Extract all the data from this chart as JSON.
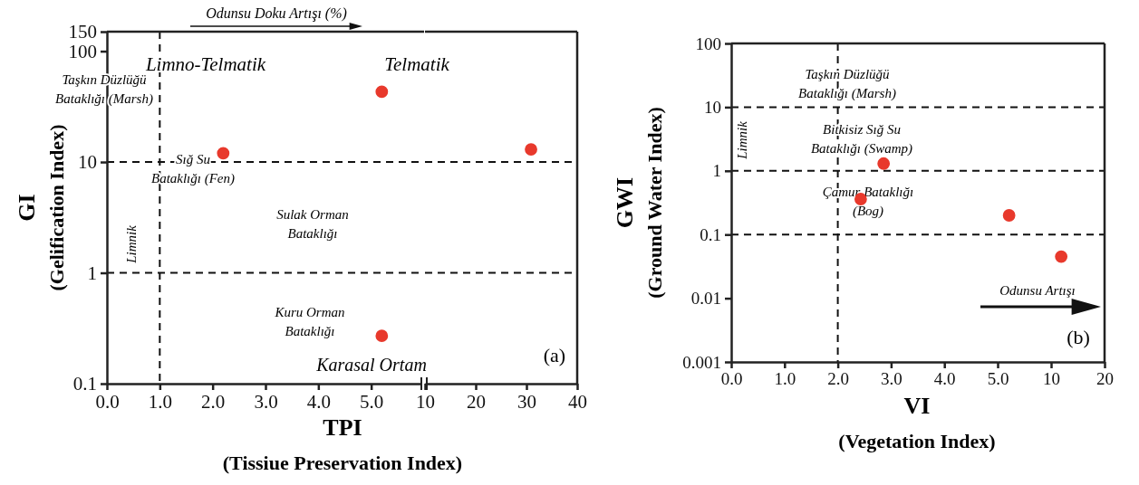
{
  "chart_data": [
    {
      "type": "scatter",
      "xlabel": "TPI\n(Tissiue Preservation Index)",
      "ylabel": "GI\n(Gelification Index)",
      "log": "y",
      "marker": "circle",
      "xlim": [
        0,
        6
      ],
      "xticks": [
        {
          "value": 0,
          "label": "0.0"
        },
        {
          "value": 1,
          "label": "1.0"
        },
        {
          "value": 2,
          "label": "2.0"
        },
        {
          "value": 3,
          "label": "3.0"
        },
        {
          "value": 4,
          "label": "4.0"
        },
        {
          "value": 5,
          "label": "5.0"
        }
      ],
      "ylim": [
        0.1,
        150
      ],
      "yticks": [
        0.1,
        1,
        10,
        100,
        150
      ],
      "series": [
        {
          "color": "#e8392c",
          "x": [
            5.2,
            2.2,
            5.2
          ],
          "values": [
            43,
            12,
            0.27
          ]
        }
      ],
      "ref_lines": [
        {
          "axis": "x",
          "value": 1,
          "line_style": "dashed"
        },
        {
          "axis": "y",
          "value": 10,
          "line_style": "dashed"
        },
        {
          "axis": "y",
          "value": 1,
          "line_style": "dashed"
        }
      ],
      "annotations": [
        "Odunsu Doku Artışı (%)",
        "Limno-Telmatik",
        "Telmatik",
        "Taşkın Düzlüğü\nBataklığı (Marsh)",
        "Sığ Su\nBataklığı (Fen)",
        "Sulak Orman\nBataklığı",
        "Limnik",
        "Kuru Orman\nBataklığı",
        "Karasal Ortam",
        "(a)"
      ]
    },
    {
      "type": "scatter",
      "log": "y",
      "marker": "circle",
      "tick_labels": "x",
      "xlim": [
        10,
        40
      ],
      "xticks": [
        10,
        20,
        30,
        40
      ],
      "ylim": [
        0.1,
        150
      ],
      "series": [
        {
          "color": "#e8392c",
          "x": [
            30.9
          ],
          "values": [
            13
          ]
        }
      ],
      "ref_lines": [
        {
          "axis": "y",
          "value": 10,
          "line_style": "dashed"
        },
        {
          "axis": "y",
          "value": 1,
          "line_style": "dashed"
        }
      ]
    },
    {
      "type": "scatter",
      "xlabel": "VI\n(Vegetation Index)",
      "ylabel": "GWI\n(Ground Water Index)",
      "log": "y",
      "marker": "circle",
      "xlim": [
        0,
        5
      ],
      "xticks": [
        {
          "value": 0,
          "label": "0.0"
        },
        {
          "value": 1,
          "label": "1.0"
        },
        {
          "value": 2,
          "label": "2.0"
        },
        {
          "value": 3,
          "label": "3.0"
        },
        {
          "value": 4,
          "label": "4.0"
        },
        {
          "value": 5,
          "label": "5.0"
        }
      ],
      "ylim": [
        0.001,
        100
      ],
      "yticks": [
        0.001,
        0.01,
        0.1,
        1,
        10,
        100
      ],
      "series": [
        {
          "color": "#e8392c",
          "x": [
            2.86,
            2.43
          ],
          "values": [
            1.3,
            0.36
          ]
        }
      ],
      "ref_lines": [
        {
          "axis": "x",
          "value": 2,
          "line_style": "dashed"
        },
        {
          "axis": "y",
          "value": 10,
          "line_style": "dashed"
        },
        {
          "axis": "y",
          "value": 1,
          "line_style": "dashed"
        },
        {
          "axis": "y",
          "value": 0.1,
          "line_style": "dashed"
        }
      ],
      "annotations": [
        "Taşkın Düzlüğü\nBataklığı (Marsh)",
        "Limnik",
        "Bitkisiz Sığ Su\nBataklığı (Swamp)",
        "Çamur Bataklığı\n(Bog)",
        "Odunsu Artışı",
        "(b)"
      ]
    },
    {
      "type": "scatter",
      "log": "xy",
      "marker": "circle",
      "tick_labels": "x",
      "xlim": [
        5,
        20
      ],
      "xticks": [
        10,
        20
      ],
      "ylim": [
        0.001,
        100
      ],
      "series": [
        {
          "color": "#e8392c",
          "x": [
            5.8,
            11.4
          ],
          "values": [
            0.2,
            0.045
          ]
        }
      ],
      "ref_lines": [
        {
          "axis": "y",
          "value": 10,
          "line_style": "dashed"
        },
        {
          "axis": "y",
          "value": 1,
          "line_style": "dashed"
        },
        {
          "axis": "y",
          "value": 0.1,
          "line_style": "dashed"
        }
      ]
    }
  ]
}
